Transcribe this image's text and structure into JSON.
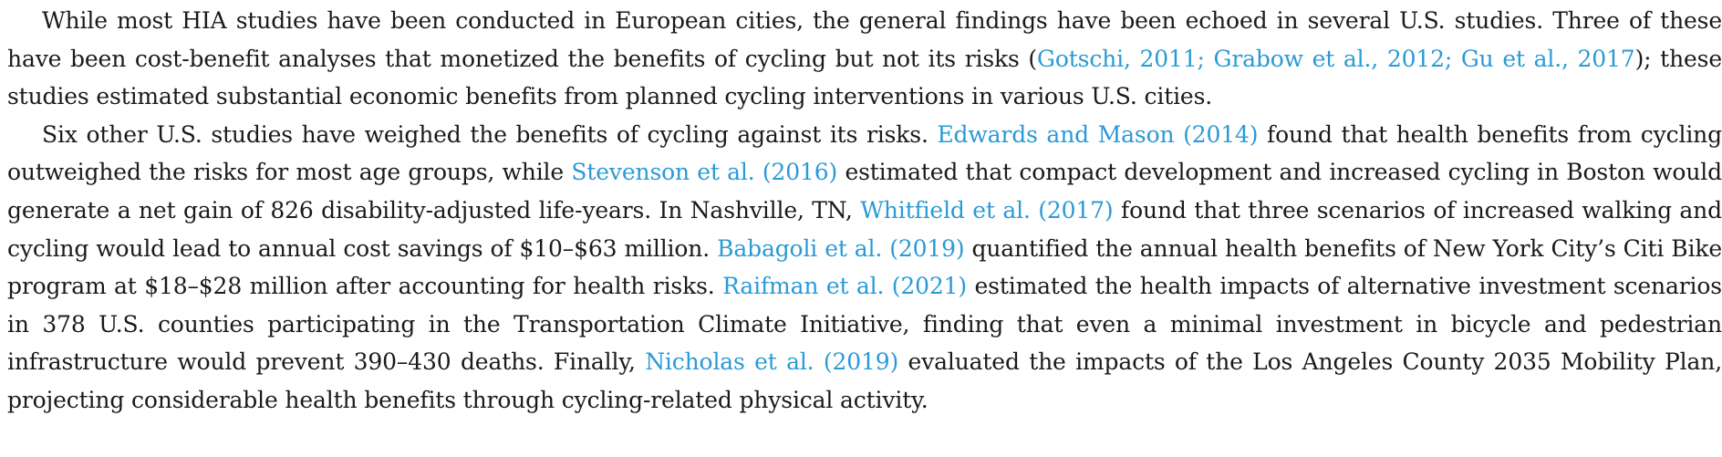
{
  "paragraph_1": {
    "seg_1": "While most HIA studies have been conducted in European cities, the general findings have been echoed in several U.S. studies. Three of these have been cost-benefit analyses that monetized the benefits of cycling but not its risks (",
    "cite_1": "Gotschi, 2011; Grabow et al., 2012; Gu et al., 2017",
    "seg_2": "); these studies estimated substantial economic benefits from planned cycling interventions in various U.S. cities."
  },
  "paragraph_2": {
    "seg_1": "Six other U.S. studies have weighed the benefits of cycling against its risks. ",
    "cite_1": "Edwards and Mason (2014)",
    "seg_2": " found that health benefits from cycling outweighed the risks for most age groups, while ",
    "cite_2": "Stevenson et al. (2016)",
    "seg_3": " estimated that compact development and increased cycling in Boston would generate a net gain of 826 disability-adjusted life-years. In Nashville, TN, ",
    "cite_3": "Whitfield et al. (2017)",
    "seg_4": " found that three scenarios of increased walking and cycling would lead to annual cost savings of $10–$63 million. ",
    "cite_4": "Babagoli et al. (2019)",
    "seg_5": " quantified the annual health benefits of New York City’s Citi Bike program at $18–$28 million after accounting for health risks. ",
    "cite_5": "Raifman et al. (2021)",
    "seg_6": " estimated the health impacts of alternative investment scenarios in 378 U.S. counties participating in the Transportation Climate Initiative, finding that even a minimal investment in bicycle and pedestrian infrastructure would prevent 390–430 deaths. Finally, ",
    "cite_6": "Nicholas et al. (2019)",
    "seg_7": " evaluated the impacts of the Los Angeles County 2035 Mobility Plan, projecting considerable health benefits through cycling-related physical activity."
  },
  "colors": {
    "text": "#1a1a1a",
    "citation_link": "#2a9ad6",
    "background": "#ffffff"
  }
}
